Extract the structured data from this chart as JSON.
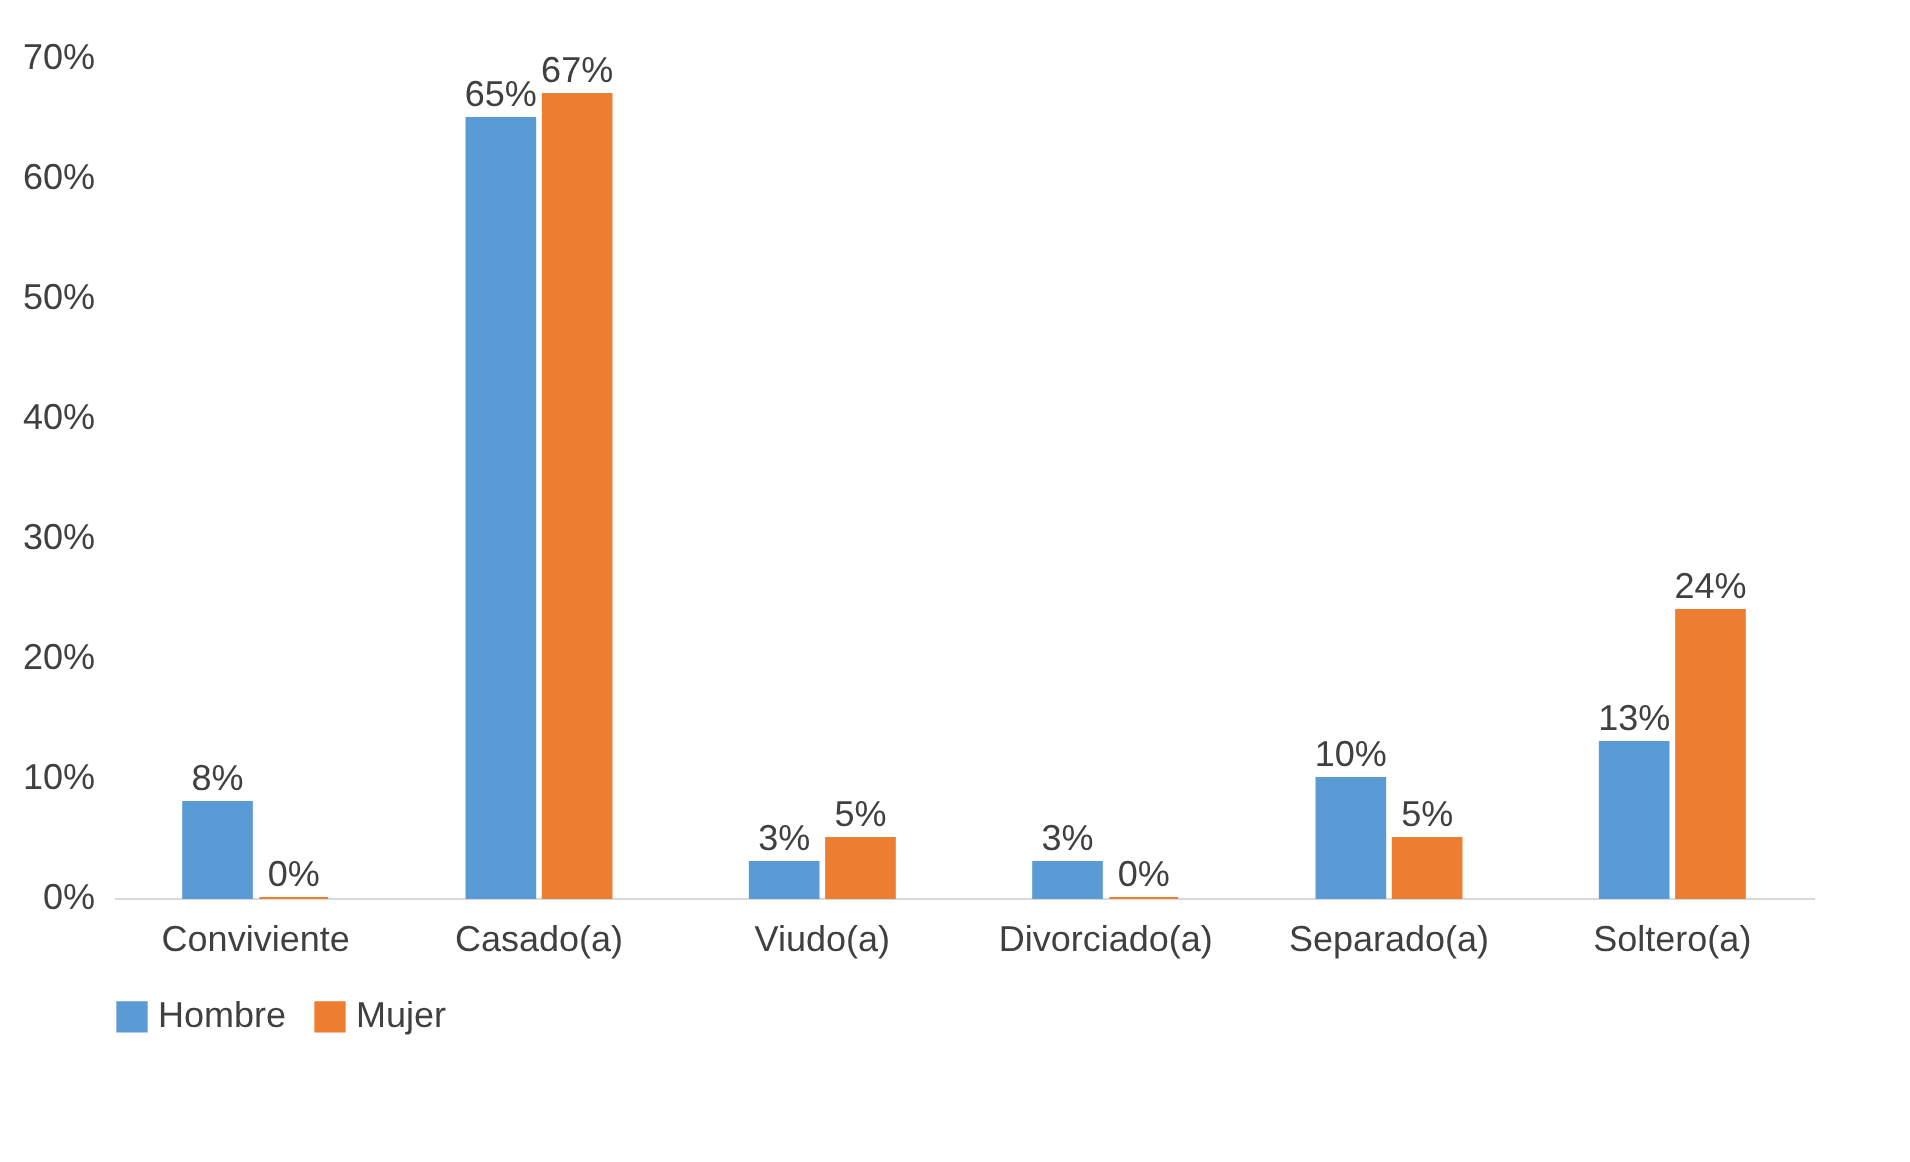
{
  "chart_data": {
    "type": "bar",
    "categories": [
      "Conviviente",
      "Casado(a)",
      "Viudo(a)",
      "Divorciado(a)",
      "Separado(a)",
      "Soltero(a)"
    ],
    "series": [
      {
        "name": "Hombre",
        "color": "#5b9bd5",
        "values": [
          8,
          65,
          3,
          3,
          10,
          13
        ],
        "value_labels": [
          "8%",
          "65%",
          "3%",
          "3%",
          "10%",
          "13%"
        ]
      },
      {
        "name": "Mujer",
        "color": "#ed7d31",
        "values": [
          0,
          67,
          5,
          0,
          5,
          24
        ],
        "value_labels": [
          "0%",
          "67%",
          "5%",
          "0%",
          "5%",
          "24%"
        ]
      }
    ],
    "ylim": [
      0,
      70
    ],
    "yticks": [
      {
        "value": 0,
        "label": "0%"
      },
      {
        "value": 10,
        "label": "10%"
      },
      {
        "value": 20,
        "label": "20%"
      },
      {
        "value": 30,
        "label": "30%"
      },
      {
        "value": 40,
        "label": "40%"
      },
      {
        "value": 50,
        "label": "50%"
      },
      {
        "value": 60,
        "label": "60%"
      },
      {
        "value": 70,
        "label": "70%"
      }
    ],
    "grid": false,
    "legend": "bottom"
  }
}
